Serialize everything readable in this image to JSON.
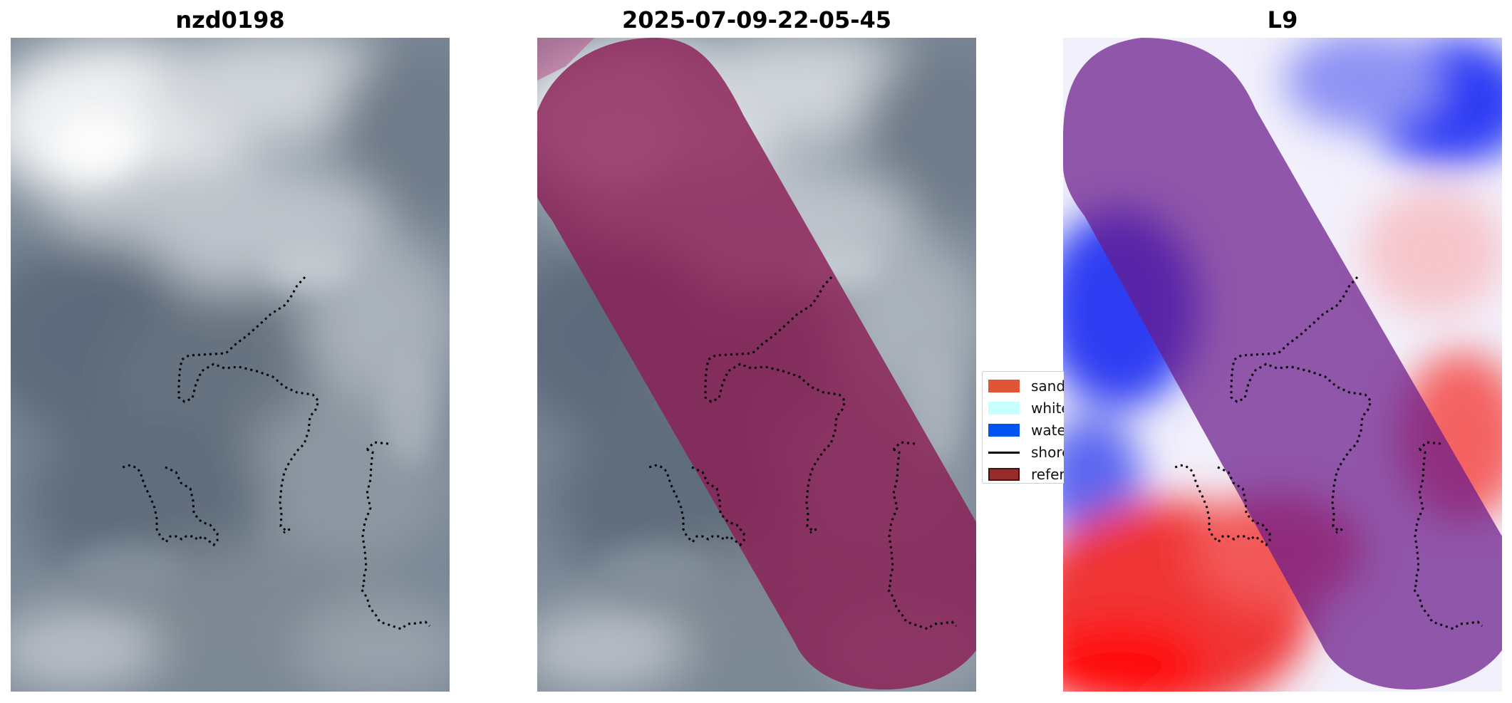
{
  "panels": [
    {
      "title": "nzd0198",
      "base": "satellite-grayscale",
      "overlay": "none"
    },
    {
      "title": "2025-07-09-22-05-45",
      "base": "satellite-grayscale",
      "overlay": "reference-area-magenta"
    },
    {
      "title": "L9",
      "base": "red-white-blue-classification",
      "overlay": "reference-area-purple"
    }
  ],
  "legend": {
    "items": [
      {
        "label": "sand",
        "color": "#e05535",
        "kind": "patch"
      },
      {
        "label": "white-water",
        "color": "#c8ffff",
        "kind": "patch"
      },
      {
        "label": "water",
        "color": "#0055f0",
        "kind": "patch"
      },
      {
        "label": "shoreline",
        "color": "#000000",
        "kind": "line"
      },
      {
        "label": "reference area",
        "color": "#992b2b",
        "kind": "patch-outlined"
      }
    ]
  },
  "colors": {
    "reference_overlay_panel2": "#8a1f55",
    "reference_overlay_panel3": "#6a1a8a",
    "shoreline": "#000000"
  },
  "icons": {
    "shoreline_marker": "dotted-line"
  }
}
